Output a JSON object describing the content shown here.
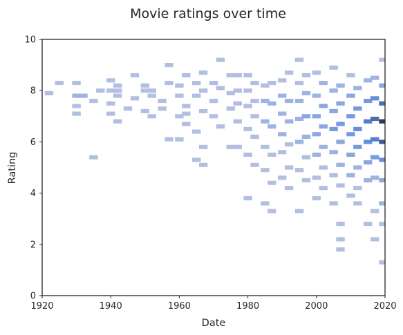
{
  "chart_data": {
    "type": "heatmap",
    "title": "Movie ratings over time",
    "xlabel": "Date",
    "ylabel": "Rating",
    "xlim": [
      1920,
      2020
    ],
    "ylim": [
      0,
      10
    ],
    "x_ticks": [
      "1920",
      "1940",
      "1960",
      "1980",
      "2000",
      "2020"
    ],
    "y_ticks": [
      "0",
      "2",
      "4",
      "6",
      "8",
      "10"
    ],
    "grid": false,
    "legend": "none",
    "colors": {
      "low": "#b2bfe0",
      "mid": "#5a88dd",
      "high": "#2c3a55",
      "spine": "#262626"
    },
    "bin_width_years": 2.5,
    "bin_height_rating": 0.165,
    "counts_note": "density level 1 (light) to 10 (dark)",
    "cells": [
      [
        1922,
        7.9,
        1
      ],
      [
        1925,
        8.3,
        1
      ],
      [
        1930,
        8.3,
        1
      ],
      [
        1930,
        7.8,
        2
      ],
      [
        1932,
        7.8,
        2
      ],
      [
        1930,
        7.4,
        1
      ],
      [
        1930,
        7.1,
        1
      ],
      [
        1935,
        7.6,
        1
      ],
      [
        1935,
        5.4,
        1
      ],
      [
        1937,
        8.0,
        1
      ],
      [
        1940,
        8.0,
        1
      ],
      [
        1942,
        8.0,
        1
      ],
      [
        1940,
        8.4,
        1
      ],
      [
        1942,
        8.2,
        1
      ],
      [
        1940,
        7.5,
        1
      ],
      [
        1940,
        7.1,
        1
      ],
      [
        1942,
        7.8,
        1
      ],
      [
        1945,
        7.3,
        1
      ],
      [
        1942,
        6.8,
        1
      ],
      [
        1947,
        8.6,
        1
      ],
      [
        1947,
        7.7,
        1
      ],
      [
        1950,
        8.2,
        1
      ],
      [
        1950,
        8.0,
        1
      ],
      [
        1952,
        8.0,
        1
      ],
      [
        1950,
        7.2,
        1
      ],
      [
        1952,
        7.0,
        1
      ],
      [
        1952,
        7.8,
        1
      ],
      [
        1955,
        7.6,
        1
      ],
      [
        1955,
        7.3,
        1
      ],
      [
        1957,
        9.0,
        1
      ],
      [
        1957,
        8.3,
        1
      ],
      [
        1957,
        6.1,
        1
      ],
      [
        1960,
        8.2,
        1
      ],
      [
        1960,
        7.8,
        1
      ],
      [
        1960,
        7.0,
        1
      ],
      [
        1960,
        6.1,
        1
      ],
      [
        1962,
        8.6,
        1
      ],
      [
        1962,
        7.4,
        1
      ],
      [
        1962,
        7.1,
        1
      ],
      [
        1962,
        6.7,
        1
      ],
      [
        1965,
        8.3,
        1
      ],
      [
        1965,
        7.8,
        1
      ],
      [
        1965,
        6.4,
        1
      ],
      [
        1965,
        5.3,
        1
      ],
      [
        1967,
        8.7,
        1
      ],
      [
        1967,
        8.0,
        1
      ],
      [
        1967,
        7.2,
        1
      ],
      [
        1967,
        5.8,
        1
      ],
      [
        1967,
        5.1,
        1
      ],
      [
        1970,
        8.3,
        1
      ],
      [
        1970,
        7.6,
        1
      ],
      [
        1970,
        7.0,
        1
      ],
      [
        1972,
        9.2,
        1
      ],
      [
        1972,
        8.1,
        1
      ],
      [
        1972,
        6.6,
        1
      ],
      [
        1975,
        8.6,
        1
      ],
      [
        1975,
        7.9,
        1
      ],
      [
        1975,
        7.3,
        1
      ],
      [
        1975,
        5.8,
        1
      ],
      [
        1977,
        8.6,
        1
      ],
      [
        1977,
        8.0,
        1
      ],
      [
        1977,
        7.5,
        1
      ],
      [
        1977,
        6.8,
        1
      ],
      [
        1977,
        5.8,
        1
      ],
      [
        1980,
        8.6,
        1
      ],
      [
        1980,
        8.0,
        1
      ],
      [
        1980,
        7.4,
        1
      ],
      [
        1980,
        6.5,
        1
      ],
      [
        1980,
        5.5,
        1
      ],
      [
        1980,
        3.8,
        1
      ],
      [
        1982,
        8.3,
        1
      ],
      [
        1982,
        7.6,
        1
      ],
      [
        1982,
        7.0,
        1
      ],
      [
        1982,
        6.2,
        1
      ],
      [
        1982,
        5.1,
        1
      ],
      [
        1985,
        8.2,
        1
      ],
      [
        1985,
        7.6,
        2
      ],
      [
        1985,
        6.8,
        2
      ],
      [
        1985,
        5.8,
        1
      ],
      [
        1985,
        4.9,
        1
      ],
      [
        1985,
        3.6,
        1
      ],
      [
        1987,
        8.3,
        1
      ],
      [
        1987,
        7.5,
        2
      ],
      [
        1987,
        6.6,
        2
      ],
      [
        1987,
        5.5,
        1
      ],
      [
        1987,
        4.4,
        1
      ],
      [
        1987,
        3.3,
        1
      ],
      [
        1990,
        8.4,
        1
      ],
      [
        1990,
        7.8,
        2
      ],
      [
        1990,
        7.1,
        2
      ],
      [
        1990,
        6.3,
        2
      ],
      [
        1990,
        5.6,
        1
      ],
      [
        1990,
        4.6,
        1
      ],
      [
        1992,
        8.7,
        1
      ],
      [
        1992,
        7.6,
        2
      ],
      [
        1992,
        6.8,
        2
      ],
      [
        1992,
        5.9,
        1
      ],
      [
        1992,
        5.0,
        1
      ],
      [
        1992,
        4.2,
        1
      ],
      [
        1995,
        9.2,
        1
      ],
      [
        1995,
        8.3,
        1
      ],
      [
        1995,
        7.6,
        2
      ],
      [
        1995,
        6.9,
        2
      ],
      [
        1995,
        6.0,
        2
      ],
      [
        1995,
        4.9,
        1
      ],
      [
        1995,
        3.3,
        1
      ],
      [
        1997,
        8.6,
        1
      ],
      [
        1997,
        7.9,
        2
      ],
      [
        1997,
        7.0,
        3
      ],
      [
        1997,
        6.2,
        2
      ],
      [
        1997,
        5.4,
        1
      ],
      [
        1997,
        4.5,
        1
      ],
      [
        2000,
        8.7,
        1
      ],
      [
        2000,
        7.8,
        2
      ],
      [
        2000,
        7.0,
        3
      ],
      [
        2000,
        6.3,
        3
      ],
      [
        2000,
        5.5,
        2
      ],
      [
        2000,
        4.6,
        1
      ],
      [
        2000,
        3.8,
        1
      ],
      [
        2002,
        8.3,
        2
      ],
      [
        2002,
        7.4,
        3
      ],
      [
        2002,
        6.6,
        3
      ],
      [
        2002,
        5.8,
        2
      ],
      [
        2002,
        5.0,
        1
      ],
      [
        2002,
        4.2,
        1
      ],
      [
        2005,
        8.9,
        1
      ],
      [
        2005,
        8.0,
        2
      ],
      [
        2005,
        7.2,
        3
      ],
      [
        2005,
        6.5,
        4
      ],
      [
        2005,
        5.6,
        2
      ],
      [
        2005,
        4.7,
        1
      ],
      [
        2005,
        3.6,
        1
      ],
      [
        2007,
        8.2,
        2
      ],
      [
        2007,
        7.5,
        3
      ],
      [
        2007,
        6.7,
        4
      ],
      [
        2007,
        6.0,
        3
      ],
      [
        2007,
        5.1,
        2
      ],
      [
        2007,
        4.3,
        1
      ],
      [
        2007,
        2.8,
        1
      ],
      [
        2007,
        2.2,
        1
      ],
      [
        2007,
        1.8,
        1
      ],
      [
        2010,
        8.6,
        1
      ],
      [
        2010,
        7.8,
        3
      ],
      [
        2010,
        7.0,
        4
      ],
      [
        2010,
        6.3,
        4
      ],
      [
        2010,
        5.5,
        3
      ],
      [
        2010,
        4.7,
        2
      ],
      [
        2010,
        3.9,
        1
      ],
      [
        2012,
        8.1,
        2
      ],
      [
        2012,
        7.3,
        4
      ],
      [
        2012,
        6.5,
        5
      ],
      [
        2012,
        5.8,
        4
      ],
      [
        2012,
        5.0,
        2
      ],
      [
        2012,
        4.2,
        1
      ],
      [
        2012,
        3.6,
        1
      ],
      [
        2015,
        8.4,
        2
      ],
      [
        2015,
        7.6,
        4
      ],
      [
        2015,
        6.8,
        6
      ],
      [
        2015,
        6.0,
        5
      ],
      [
        2015,
        5.2,
        3
      ],
      [
        2015,
        4.5,
        2
      ],
      [
        2015,
        2.8,
        1
      ],
      [
        2017,
        8.5,
        2
      ],
      [
        2017,
        7.7,
        5
      ],
      [
        2017,
        6.9,
        7
      ],
      [
        2017,
        6.1,
        6
      ],
      [
        2017,
        5.4,
        4
      ],
      [
        2017,
        4.6,
        2
      ],
      [
        2017,
        3.3,
        1
      ],
      [
        2017,
        2.2,
        1
      ],
      [
        2019.5,
        8.2,
        3
      ],
      [
        2019.5,
        7.5,
        7
      ],
      [
        2019.5,
        6.8,
        10
      ],
      [
        2019.5,
        6.0,
        8
      ],
      [
        2019.5,
        5.3,
        5
      ],
      [
        2019.5,
        4.5,
        3
      ],
      [
        2019.5,
        3.6,
        2
      ],
      [
        2019.5,
        2.8,
        1
      ],
      [
        2019.5,
        1.3,
        1
      ],
      [
        2019.5,
        9.2,
        1
      ]
    ]
  }
}
